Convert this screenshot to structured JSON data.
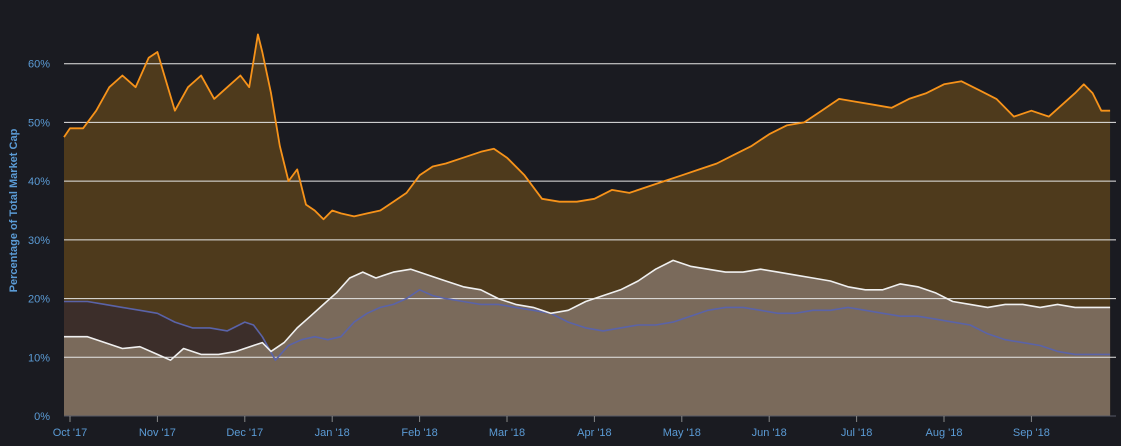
{
  "colors": {
    "background": "#1a1b21",
    "grid": "#e6e6e6",
    "axis_text": "#5b9bd5",
    "bitcoin_line": "#f7931a",
    "bitcoin_fill": "#4e3a1c",
    "white_line": "#f0f0f0",
    "white_fill": "#7a6a5b",
    "blue_line": "#5a63a8",
    "blue_fill": "#3c2e2a"
  },
  "chart_data": {
    "type": "area",
    "title": "",
    "ylabel": "Percentage of Total Market Cap",
    "xlabel": "",
    "ylim": [
      0,
      70
    ],
    "yticks": [
      0,
      10,
      20,
      30,
      40,
      50,
      60
    ],
    "ytick_labels": [
      "0%",
      "10%",
      "20%",
      "30%",
      "40%",
      "50%",
      "60%"
    ],
    "xlim": [
      0,
      12
    ],
    "xticks": [
      0,
      1,
      2,
      3,
      4,
      5,
      6,
      7,
      8,
      9,
      10,
      11
    ],
    "xtick_labels": [
      "Oct '17",
      "Nov '17",
      "Dec '17",
      "Jan '18",
      "Feb '18",
      "Mar '18",
      "Apr '18",
      "May '18",
      "Jun '18",
      "Jul '18",
      "Aug '18",
      "Sep '18"
    ],
    "grid": true,
    "legend": "none",
    "series": [
      {
        "color": "#f7931a",
        "x": [
          -0.1,
          0.0,
          0.15,
          0.3,
          0.45,
          0.6,
          0.75,
          0.9,
          1.0,
          1.1,
          1.2,
          1.35,
          1.5,
          1.65,
          1.8,
          1.95,
          2.05,
          2.15,
          2.2,
          2.3,
          2.4,
          2.5,
          2.6,
          2.7,
          2.8,
          2.9,
          3.0,
          3.1,
          3.25,
          3.4,
          3.55,
          3.7,
          3.85,
          4.0,
          4.15,
          4.3,
          4.5,
          4.7,
          4.85,
          5.0,
          5.2,
          5.4,
          5.6,
          5.8,
          6.0,
          6.2,
          6.4,
          6.6,
          6.8,
          7.0,
          7.2,
          7.4,
          7.6,
          7.8,
          8.0,
          8.2,
          8.4,
          8.6,
          8.8,
          9.0,
          9.2,
          9.4,
          9.6,
          9.8,
          10.0,
          10.2,
          10.4,
          10.6,
          10.8,
          11.0,
          11.2,
          11.35,
          11.5,
          11.6,
          11.7,
          11.8,
          11.9
        ],
        "values": [
          47.5,
          49,
          49,
          52,
          56,
          58,
          56,
          61,
          62,
          57,
          52,
          56,
          58,
          54,
          56,
          58,
          56,
          65,
          62,
          55,
          46,
          40,
          42,
          36,
          35,
          33.5,
          35,
          34.5,
          34,
          34.5,
          35,
          36.5,
          38,
          41,
          42.5,
          43,
          44,
          45,
          45.5,
          44,
          41,
          37,
          36.5,
          36.5,
          37,
          38.5,
          38,
          39,
          40,
          41,
          42,
          43,
          44.5,
          46,
          48,
          49.5,
          50,
          52,
          54,
          53.5,
          53,
          52.5,
          54,
          55,
          56.5,
          57,
          55.5,
          54,
          51,
          52,
          51,
          53,
          55,
          56.5,
          55,
          52,
          52
        ]
      },
      {
        "color": "#f0f0f0",
        "x": [
          -0.1,
          0.0,
          0.2,
          0.4,
          0.6,
          0.8,
          1.0,
          1.15,
          1.3,
          1.5,
          1.7,
          1.9,
          2.1,
          2.2,
          2.3,
          2.45,
          2.6,
          2.75,
          2.9,
          3.05,
          3.2,
          3.35,
          3.5,
          3.7,
          3.9,
          4.1,
          4.3,
          4.5,
          4.7,
          4.9,
          5.1,
          5.3,
          5.5,
          5.7,
          5.9,
          6.1,
          6.3,
          6.5,
          6.7,
          6.9,
          7.1,
          7.3,
          7.5,
          7.7,
          7.9,
          8.1,
          8.3,
          8.5,
          8.7,
          8.9,
          9.1,
          9.3,
          9.5,
          9.7,
          9.9,
          10.1,
          10.3,
          10.5,
          10.7,
          10.9,
          11.1,
          11.3,
          11.5,
          11.7,
          11.9
        ],
        "values": [
          13.5,
          13.5,
          13.5,
          12.5,
          11.5,
          11.8,
          10.5,
          9.5,
          11.5,
          10.5,
          10.5,
          11,
          12,
          12.5,
          11,
          12.5,
          15,
          17,
          19,
          21,
          23.5,
          24.5,
          23.5,
          24.5,
          25,
          24,
          23,
          22,
          21.5,
          20,
          19,
          18.5,
          17.5,
          18,
          19.5,
          20.5,
          21.5,
          23,
          25,
          26.5,
          25.5,
          25,
          24.5,
          24.5,
          25,
          24.5,
          24,
          23.5,
          23,
          22,
          21.5,
          21.5,
          22.5,
          22,
          21,
          19.5,
          19,
          18.5,
          19,
          19,
          18.5,
          19,
          18.5,
          18.5,
          18.5
        ]
      },
      {
        "color": "#5a63a8",
        "x": [
          -0.1,
          0.0,
          0.2,
          0.4,
          0.6,
          0.8,
          1.0,
          1.2,
          1.4,
          1.6,
          1.8,
          2.0,
          2.1,
          2.2,
          2.35,
          2.5,
          2.65,
          2.8,
          2.95,
          3.1,
          3.25,
          3.4,
          3.55,
          3.7,
          3.85,
          4.0,
          4.15,
          4.3,
          4.5,
          4.7,
          4.9,
          5.1,
          5.3,
          5.5,
          5.7,
          5.9,
          6.1,
          6.3,
          6.5,
          6.7,
          6.9,
          7.1,
          7.3,
          7.5,
          7.7,
          7.9,
          8.1,
          8.3,
          8.5,
          8.7,
          8.9,
          9.1,
          9.3,
          9.5,
          9.7,
          9.9,
          10.1,
          10.3,
          10.5,
          10.7,
          10.9,
          11.1,
          11.3,
          11.5,
          11.7,
          11.9
        ],
        "values": [
          19.5,
          19.5,
          19.5,
          19,
          18.5,
          18,
          17.5,
          16,
          15,
          15,
          14.5,
          16,
          15.5,
          13.5,
          9.5,
          12,
          13,
          13.5,
          13,
          13.5,
          16,
          17.5,
          18.5,
          19,
          20,
          21.5,
          20.5,
          20,
          19.5,
          19,
          19,
          18.5,
          18,
          17.5,
          16,
          15,
          14.5,
          15,
          15.5,
          15.5,
          16,
          17,
          18,
          18.5,
          18.5,
          18,
          17.5,
          17.5,
          18,
          18,
          18.5,
          18,
          17.5,
          17,
          17,
          16.5,
          16,
          15.5,
          14,
          13,
          12.5,
          12,
          11,
          10.5,
          10.5,
          10.5
        ]
      }
    ]
  }
}
